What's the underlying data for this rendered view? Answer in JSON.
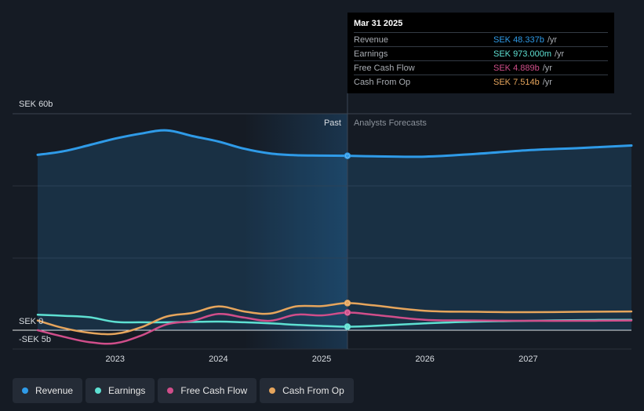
{
  "chart_data": {
    "type": "line",
    "y_axis": {
      "unit": "SEK",
      "ylim": [
        -5,
        60
      ],
      "labels": [
        "SEK 60b",
        "SEK 0",
        "-SEK 5b"
      ]
    },
    "x_axis": {
      "xlim": [
        2022.25,
        2028.0
      ],
      "ticks": [
        "2023",
        "2024",
        "2025",
        "2026",
        "2027"
      ],
      "tick_values": [
        2023,
        2024,
        2025,
        2026,
        2027
      ]
    },
    "divider": {
      "x": 2025.25,
      "past_label": "Past",
      "forecast_label": "Analysts Forecasts"
    },
    "series": [
      {
        "name": "Revenue",
        "color": "#2f9be8",
        "area": true,
        "points": [
          [
            2022.25,
            48.6
          ],
          [
            2022.5,
            49.6
          ],
          [
            2022.75,
            51.3
          ],
          [
            2023.0,
            53.1
          ],
          [
            2023.25,
            54.5
          ],
          [
            2023.5,
            55.4
          ],
          [
            2023.75,
            53.8
          ],
          [
            2024.0,
            52.3
          ],
          [
            2024.25,
            50.3
          ],
          [
            2024.5,
            49.0
          ],
          [
            2024.75,
            48.5
          ],
          [
            2025.0,
            48.4
          ],
          [
            2025.25,
            48.337
          ],
          [
            2025.5,
            48.2
          ],
          [
            2026.0,
            48.1
          ],
          [
            2026.5,
            48.9
          ],
          [
            2027.0,
            49.9
          ],
          [
            2027.5,
            50.5
          ],
          [
            2028.0,
            51.2
          ]
        ]
      },
      {
        "name": "Earnings",
        "color": "#5ee0d2",
        "points": [
          [
            2022.25,
            4.3
          ],
          [
            2022.5,
            4.0
          ],
          [
            2022.75,
            3.6
          ],
          [
            2023.0,
            2.3
          ],
          [
            2023.25,
            2.2
          ],
          [
            2023.5,
            2.2
          ],
          [
            2023.75,
            2.3
          ],
          [
            2024.0,
            2.4
          ],
          [
            2024.25,
            2.2
          ],
          [
            2024.5,
            1.9
          ],
          [
            2024.75,
            1.5
          ],
          [
            2025.0,
            1.2
          ],
          [
            2025.25,
            0.973
          ],
          [
            2025.5,
            1.2
          ],
          [
            2026.0,
            1.9
          ],
          [
            2026.5,
            2.4
          ],
          [
            2027.0,
            2.6
          ],
          [
            2027.5,
            2.8
          ],
          [
            2028.0,
            2.9
          ]
        ]
      },
      {
        "name": "Free Cash Flow",
        "color": "#d04e8a",
        "points": [
          [
            2022.25,
            0.0
          ],
          [
            2022.5,
            -1.8
          ],
          [
            2022.75,
            -3.3
          ],
          [
            2023.0,
            -3.6
          ],
          [
            2023.25,
            -1.5
          ],
          [
            2023.5,
            1.6
          ],
          [
            2023.75,
            2.6
          ],
          [
            2024.0,
            4.5
          ],
          [
            2024.25,
            3.5
          ],
          [
            2024.5,
            2.6
          ],
          [
            2024.75,
            4.3
          ],
          [
            2025.0,
            4.1
          ],
          [
            2025.25,
            4.889
          ],
          [
            2025.5,
            4.3
          ],
          [
            2026.0,
            2.9
          ],
          [
            2026.5,
            2.7
          ],
          [
            2027.0,
            2.6
          ],
          [
            2027.5,
            2.6
          ],
          [
            2028.0,
            2.7
          ]
        ]
      },
      {
        "name": "Cash From Op",
        "color": "#e6a55c",
        "points": [
          [
            2022.25,
            2.7
          ],
          [
            2022.5,
            0.6
          ],
          [
            2022.75,
            -0.7
          ],
          [
            2023.0,
            -1.0
          ],
          [
            2023.25,
            0.8
          ],
          [
            2023.5,
            3.8
          ],
          [
            2023.75,
            4.8
          ],
          [
            2024.0,
            6.6
          ],
          [
            2024.25,
            5.2
          ],
          [
            2024.5,
            4.6
          ],
          [
            2024.75,
            6.6
          ],
          [
            2025.0,
            6.7
          ],
          [
            2025.25,
            7.514
          ],
          [
            2025.5,
            6.9
          ],
          [
            2026.0,
            5.4
          ],
          [
            2026.5,
            5.1
          ],
          [
            2027.0,
            5.0
          ],
          [
            2027.5,
            5.1
          ],
          [
            2028.0,
            5.2
          ]
        ]
      }
    ],
    "highlight_x": 2025.25
  },
  "tooltip": {
    "title": "Mar 31 2025",
    "rows": [
      {
        "label": "Revenue",
        "value": "SEK 48.337b",
        "unit": "/yr",
        "color": "#2f9be8"
      },
      {
        "label": "Earnings",
        "value": "SEK 973.000m",
        "unit": "/yr",
        "color": "#5ee0d2"
      },
      {
        "label": "Free Cash Flow",
        "value": "SEK 4.889b",
        "unit": "/yr",
        "color": "#d04e8a"
      },
      {
        "label": "Cash From Op",
        "value": "SEK 7.514b",
        "unit": "/yr",
        "color": "#e6a55c"
      }
    ]
  },
  "legend": [
    {
      "label": "Revenue",
      "color": "#2f9be8"
    },
    {
      "label": "Earnings",
      "color": "#5ee0d2"
    },
    {
      "label": "Free Cash Flow",
      "color": "#d04e8a"
    },
    {
      "label": "Cash From Op",
      "color": "#e6a55c"
    }
  ]
}
